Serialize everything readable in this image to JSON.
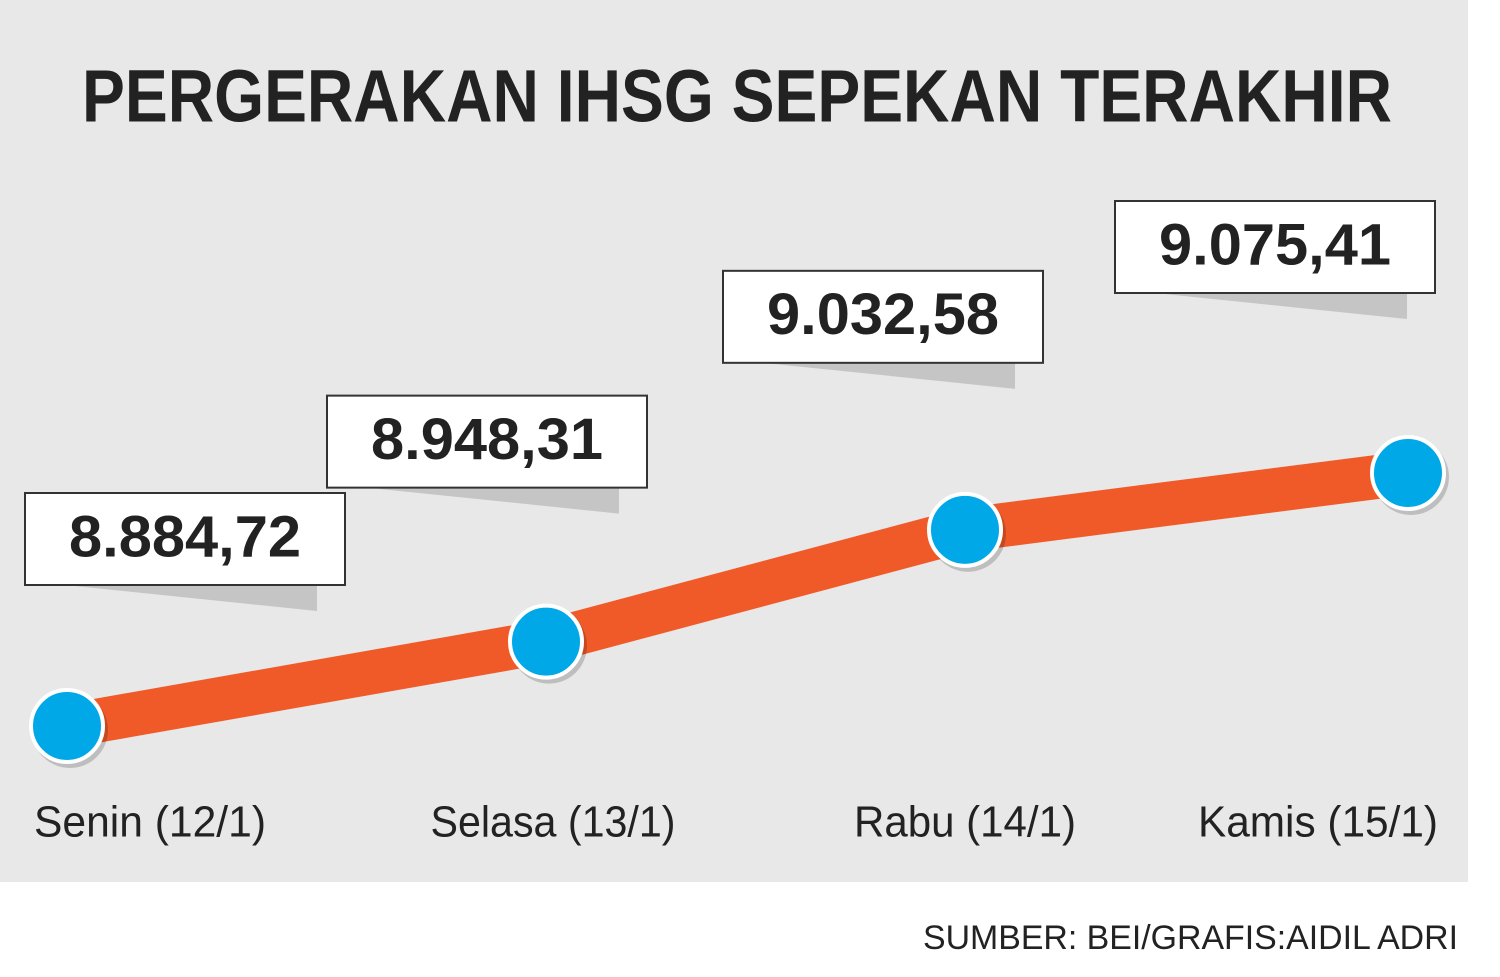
{
  "chart_data": {
    "type": "line",
    "title": "PERGERAKAN IHSG SEPEKAN TERAKHIR",
    "categories": [
      "Senin (12/1)",
      "Selasa (13/1)",
      "Rabu (14/1)",
      "Kamis (15/1)"
    ],
    "series": [
      {
        "color": "#f05a28",
        "marker_color": "#00a8e8",
        "values": [
          8884.72,
          8948.31,
          9032.58,
          9075.41
        ],
        "value_labels": [
          "8.884,72",
          "8.948,31",
          "9.032,58",
          "9.075,41"
        ]
      }
    ],
    "source": "SUMBER: BEI/GRAFIS:AIDIL ADRI"
  }
}
